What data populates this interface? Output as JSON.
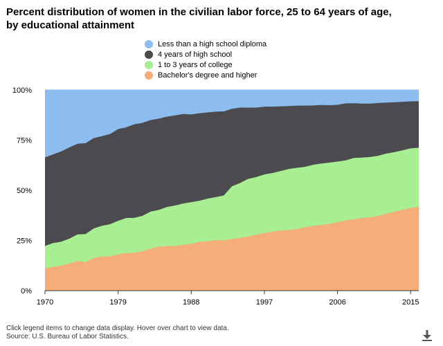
{
  "title": "Percent distribution of women in the civilian labor force, 25 to 64 years of age, by educational attainment",
  "footer": {
    "note": "Click legend items to change data display. Hover over chart to view data.",
    "source": "Source: U.S. Bureau of Labor Statistics."
  },
  "icons": {
    "download": "download-icon"
  },
  "chart_data": {
    "type": "area",
    "stacked": true,
    "title": "Percent distribution of women in the civilian labor force, 25 to 64 years of age, by educational attainment",
    "xlabel": "",
    "ylabel": "",
    "x": [
      1970,
      1971,
      1972,
      1973,
      1974,
      1975,
      1976,
      1977,
      1978,
      1979,
      1980,
      1981,
      1982,
      1983,
      1984,
      1985,
      1986,
      1987,
      1988,
      1989,
      1990,
      1991,
      1992,
      1993,
      1994,
      1995,
      1996,
      1997,
      1998,
      1999,
      2000,
      2001,
      2002,
      2003,
      2004,
      2005,
      2006,
      2007,
      2008,
      2009,
      2010,
      2011,
      2012,
      2013,
      2014,
      2015,
      2016
    ],
    "xticks": [
      "1970",
      "1979",
      "1988",
      "1997",
      "2006",
      "2015"
    ],
    "yticks": [
      "0%",
      "25%",
      "50%",
      "75%",
      "100%"
    ],
    "ylim": [
      0,
      100
    ],
    "xlim": [
      1970,
      2016
    ],
    "grid": "horizontal dashed",
    "legend_position": "top",
    "series": [
      {
        "name": "Bachelor's degree and higher",
        "color": "#f5ad7a",
        "values": [
          11.2,
          11.9,
          12.5,
          13.5,
          14.8,
          14.2,
          16.3,
          17.0,
          17.1,
          18.0,
          18.8,
          18.8,
          19.7,
          20.9,
          21.9,
          22.2,
          22.3,
          22.8,
          23.3,
          24.3,
          24.6,
          25.2,
          25.1,
          25.7,
          26.3,
          27.0,
          27.9,
          28.6,
          29.4,
          30.0,
          30.2,
          30.7,
          31.6,
          32.3,
          32.7,
          33.3,
          34.1,
          35.0,
          35.6,
          36.2,
          36.6,
          37.2,
          38.3,
          39.3,
          40.2,
          41.2,
          41.8
        ]
      },
      {
        "name": "1 to 3 years of college",
        "color": "#a8ee93",
        "values": [
          11.1,
          11.8,
          11.9,
          12.4,
          13.2,
          14.0,
          14.7,
          15.3,
          16.0,
          16.8,
          17.4,
          17.5,
          17.6,
          18.5,
          18.3,
          19.5,
          20.1,
          20.6,
          20.8,
          20.5,
          21.2,
          21.4,
          22.3,
          26.3,
          27.3,
          28.7,
          28.7,
          29.3,
          29.2,
          29.6,
          30.4,
          30.5,
          30.1,
          30.4,
          30.6,
          30.5,
          30.2,
          29.9,
          30.5,
          30.1,
          30.0,
          30.0,
          30.0,
          29.7,
          29.7,
          29.7,
          29.4
        ]
      },
      {
        "name": "4 years of high school",
        "color": "#4a4a4f",
        "values": [
          44.1,
          44.2,
          45.0,
          45.5,
          45.2,
          45.3,
          45.0,
          44.7,
          44.9,
          45.7,
          45.2,
          46.6,
          46.3,
          45.6,
          45.5,
          45.0,
          44.9,
          44.6,
          43.7,
          43.6,
          43.0,
          42.6,
          41.9,
          38.6,
          37.6,
          35.5,
          34.6,
          33.8,
          33.1,
          32.2,
          31.4,
          31.0,
          30.5,
          29.6,
          29.2,
          28.6,
          28.3,
          28.4,
          27.3,
          26.9,
          26.6,
          26.3,
          25.4,
          24.9,
          24.2,
          23.4,
          23.2
        ]
      },
      {
        "name": "Less than a high school diploma",
        "color": "#8dbcee",
        "values": [
          33.6,
          32.1,
          30.6,
          28.6,
          26.8,
          26.5,
          24.0,
          23.0,
          22.0,
          19.5,
          18.6,
          17.1,
          16.4,
          15.0,
          14.3,
          13.3,
          12.7,
          12.0,
          12.2,
          11.6,
          11.2,
          10.8,
          10.7,
          9.4,
          8.8,
          8.8,
          8.8,
          8.3,
          8.3,
          8.2,
          8.0,
          7.8,
          7.8,
          7.7,
          7.5,
          7.6,
          7.4,
          6.7,
          6.6,
          6.8,
          6.8,
          6.5,
          6.3,
          6.1,
          5.9,
          5.7,
          5.6
        ]
      }
    ]
  }
}
